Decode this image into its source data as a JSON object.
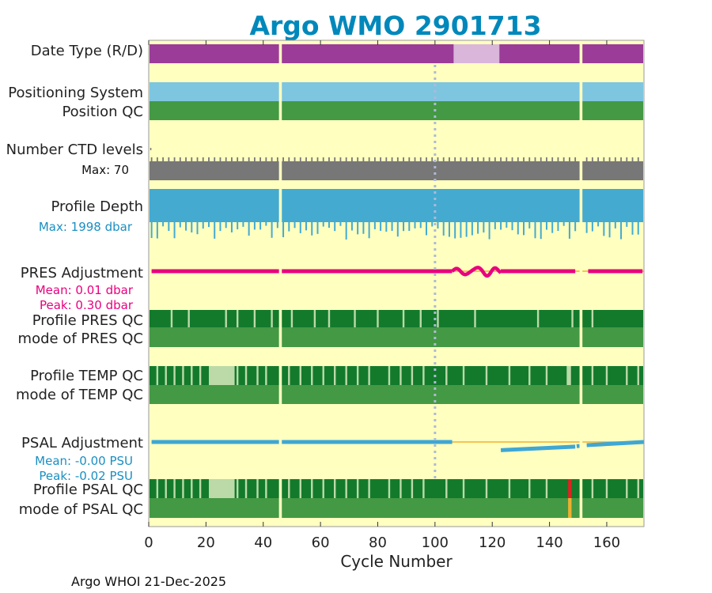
{
  "chart_data": {
    "type": "bar",
    "title": "Argo WMO 2901713",
    "xlabel": "Cycle Number",
    "xlim": [
      0,
      173
    ],
    "xticks": [
      0,
      20,
      40,
      60,
      80,
      100,
      120,
      140,
      160
    ],
    "footer": "Argo WHOI 21-Dec-2025",
    "missing_cycles": [
      46,
      151
    ],
    "reference_cycle": 100,
    "rows": [
      {
        "label": "Date Type (R/D)",
        "color": "#9b3c98",
        "segments": [
          {
            "from": 106.5,
            "to": 122.5,
            "color": "#dab6da"
          }
        ]
      },
      {
        "label": "Positioning System",
        "color": "#7ec6e0"
      },
      {
        "label": "Position QC",
        "color": "#449944"
      },
      {
        "label": "Number CTD levels",
        "color": "#777777"
      },
      {
        "label": "Profile Depth",
        "color": "#44aad0"
      },
      {
        "label": "PRES Adjustment",
        "color": "#e8007f"
      },
      {
        "label": "Profile PRES QC",
        "color": "#137a2c"
      },
      {
        "label": "mode of PRES QC",
        "color": "#449944"
      },
      {
        "label": "Profile TEMP QC",
        "color": "#137a2c",
        "segments": [
          {
            "from": 21,
            "to": 30,
            "color": "#bcdaa8"
          },
          {
            "from": 146,
            "to": 147.5,
            "color": "#bcdaa8"
          }
        ]
      },
      {
        "label": "mode of TEMP QC",
        "color": "#449944"
      },
      {
        "label": "PSAL Adjustment",
        "color": "#3fa7d4"
      },
      {
        "label": "Profile PSAL QC",
        "color": "#137a2c",
        "segments": [
          {
            "from": 21,
            "to": 30,
            "color": "#bcdaa8"
          },
          {
            "from": 146.5,
            "to": 147.7,
            "color": "#dd2222"
          }
        ]
      },
      {
        "label": "mode of PSAL QC",
        "color": "#449944",
        "segments": [
          {
            "from": 146.5,
            "to": 147.7,
            "color": "#eeb030"
          }
        ]
      }
    ],
    "annotations": {
      "ctd_max": "Max: 70",
      "depth_max": "Max: 1998 dbar",
      "pres_mean": "Mean: 0.01 dbar",
      "pres_peak": "Peak: 0.30 dbar",
      "psal_mean": "Mean: -0.00 PSU",
      "psal_peak": "Peak: -0.02 PSU"
    },
    "pres_adjustment_wiggle": {
      "from": 106,
      "to": 123,
      "peak_dbar": 0.3
    },
    "psal_adjustment": {
      "baseline_until": 106,
      "trend_from": 123,
      "trend_to": 173,
      "trend_start_psu": -0.0115,
      "trend_end_psu": 0.0
    },
    "colors": {
      "plot_bg": "#ffffc0",
      "title": "#0088bb",
      "annotation_blue": "#1a8fc2",
      "annotation_pink": "#e8007f",
      "zero_line": "#f0b030",
      "gap": "#ffffc0",
      "ref_line": "#b0b8d8"
    }
  }
}
